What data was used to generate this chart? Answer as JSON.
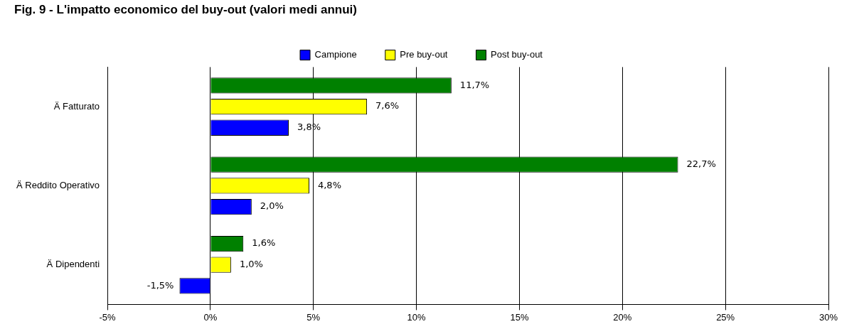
{
  "chart_data": {
    "type": "bar",
    "orientation": "horizontal",
    "title": "Fig. 9 - L'impatto economico del buy-out (valori medi annui)",
    "categories": [
      "Ä Fatturato",
      "Ä Reddito Operativo",
      "Ä Dipendenti"
    ],
    "series": [
      {
        "name": "Campione",
        "color": "#0000ff",
        "values": [
          3.8,
          2.0,
          -1.5
        ],
        "value_labels": [
          "3,8%",
          "2,0%",
          "-1,5%"
        ]
      },
      {
        "name": "Pre buy-out",
        "color": "#ffff00",
        "values": [
          7.6,
          4.8,
          1.0
        ],
        "value_labels": [
          "7,6%",
          "4,8%",
          "1,0%"
        ]
      },
      {
        "name": "Post buy-out",
        "color": "#008000",
        "values": [
          11.7,
          22.7,
          1.6
        ],
        "value_labels": [
          "11,7%",
          "22,7%",
          "1,6%"
        ]
      }
    ],
    "xlim": [
      -5,
      30
    ],
    "xticks": [
      {
        "value": -5,
        "label": "-5%"
      },
      {
        "value": 0,
        "label": "0%"
      },
      {
        "value": 5,
        "label": "5%"
      },
      {
        "value": 10,
        "label": "10%"
      },
      {
        "value": 15,
        "label": "15%"
      },
      {
        "value": 20,
        "label": "20%"
      },
      {
        "value": 25,
        "label": "25%"
      },
      {
        "value": 30,
        "label": "30%"
      }
    ],
    "grid": "x",
    "legend": "top"
  }
}
